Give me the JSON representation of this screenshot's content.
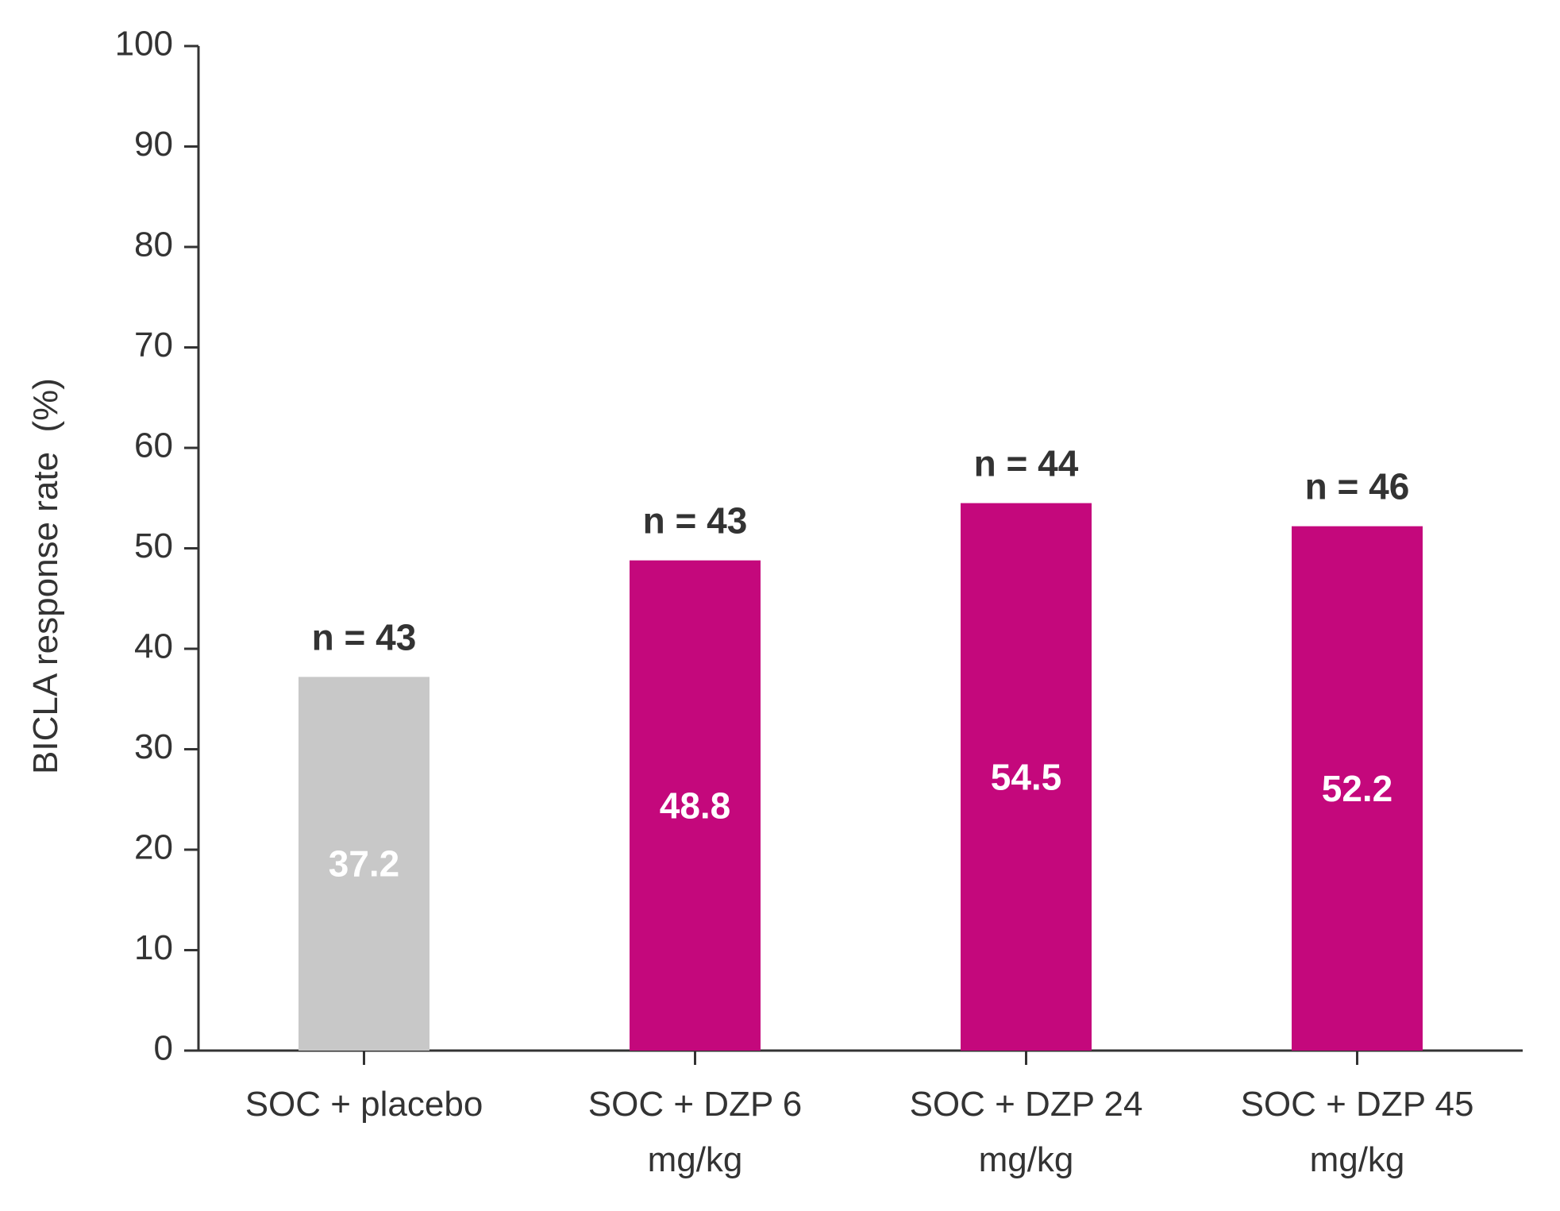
{
  "chart_data": {
    "type": "bar",
    "title": "",
    "xlabel": "",
    "ylabel": "BICLA response rate  (%)",
    "ylim": [
      0,
      100
    ],
    "yticks": [
      0,
      10,
      20,
      30,
      40,
      50,
      60,
      70,
      80,
      90,
      100
    ],
    "grid": false,
    "legend": "none",
    "categories": [
      [
        "SOC + placebo"
      ],
      [
        "SOC + DZP 6",
        "mg/kg"
      ],
      [
        "SOC + DZP 24",
        "mg/kg"
      ],
      [
        "SOC + DZP 45",
        "mg/kg"
      ]
    ],
    "values": [
      37.2,
      48.8,
      54.5,
      52.2
    ],
    "value_labels": [
      "37.2",
      "48.8",
      "54.5",
      "52.2"
    ],
    "n_labels": [
      "n = 43",
      "n = 43",
      "n = 44",
      "n = 46"
    ],
    "colors": [
      "#c8c8c8",
      "#c4087c",
      "#c4087c",
      "#c4087c"
    ]
  }
}
